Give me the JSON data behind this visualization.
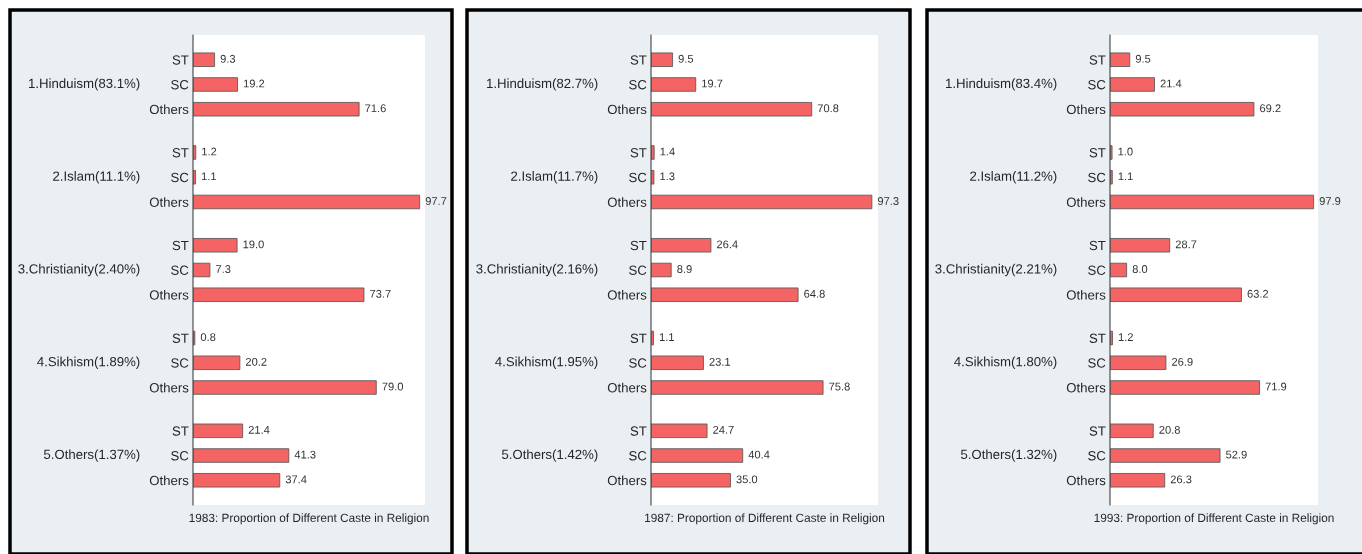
{
  "chart_data": [
    {
      "type": "bar",
      "orientation": "horizontal",
      "xlabel": "1983: Proportion of Different Caste in Religion",
      "categories": [
        "ST",
        "SC",
        "Others",
        "ST",
        "SC",
        "Others",
        "ST",
        "SC",
        "Others",
        "ST",
        "SC",
        "Others",
        "ST",
        "SC",
        "Others"
      ],
      "annotations": [
        "1.Hinduism(83.1%)",
        "2.Islam(11.1%)",
        "3.Christianity(2.40%)",
        "4.Sikhism(1.89%)",
        "5.Others(1.37%)"
      ],
      "values": [
        9.3,
        19.2,
        71.6,
        1.2,
        1.1,
        97.7,
        19.0,
        7.3,
        73.7,
        0.8,
        20.2,
        79.0,
        21.4,
        41.3,
        37.4
      ],
      "value_labels": [
        "9.3",
        "19.2",
        "71.6",
        "1.2",
        "1.1",
        "97.7",
        "19.0",
        "7.3",
        "73.7",
        "0.8",
        "20.2",
        "79.0",
        "21.4",
        "41.3",
        "37.4"
      ],
      "color": "#f46464",
      "xlim": [
        0,
        100
      ],
      "tick_labels": "y"
    },
    {
      "type": "bar",
      "orientation": "horizontal",
      "xlabel": "1987: Proportion of Different Caste in Religion",
      "categories": [
        "ST",
        "SC",
        "Others",
        "ST",
        "SC",
        "Others",
        "ST",
        "SC",
        "Others",
        "ST",
        "SC",
        "Others",
        "ST",
        "SC",
        "Others"
      ],
      "annotations": [
        "1.Hinduism(82.7%)",
        "2.Islam(11.7%)",
        "3.Christianity(2.16%)",
        "4.Sikhism(1.95%)",
        "5.Others(1.42%)"
      ],
      "values": [
        9.5,
        19.7,
        70.8,
        1.4,
        1.3,
        97.3,
        26.4,
        8.9,
        64.8,
        1.1,
        23.1,
        75.8,
        24.7,
        40.4,
        35.0
      ],
      "value_labels": [
        "9.5",
        "19.7",
        "70.8",
        "1.4",
        "1.3",
        "97.3",
        "26.4",
        "8.9",
        "64.8",
        "1.1",
        "23.1",
        "75.8",
        "24.7",
        "40.4",
        "35.0"
      ],
      "color": "#f46464",
      "xlim": [
        0,
        100
      ],
      "tick_labels": "y"
    },
    {
      "type": "bar",
      "orientation": "horizontal",
      "xlabel": "1993: Proportion of Different Caste in Religion",
      "categories": [
        "ST",
        "SC",
        "Others",
        "ST",
        "SC",
        "Others",
        "ST",
        "SC",
        "Others",
        "ST",
        "SC",
        "Others",
        "ST",
        "SC",
        "Others"
      ],
      "annotations": [
        "1.Hinduism(83.4%)",
        "2.Islam(11.2%)",
        "3.Christianity(2.21%)",
        "4.Sikhism(1.80%)",
        "5.Others(1.32%)"
      ],
      "values": [
        9.5,
        21.4,
        69.2,
        1.0,
        1.1,
        97.9,
        28.7,
        8.0,
        63.2,
        1.2,
        26.9,
        71.9,
        20.8,
        52.9,
        26.3
      ],
      "value_labels": [
        "9.5",
        "21.4",
        "69.2",
        "1.0",
        "1.1",
        "97.9",
        "28.7",
        "8.0",
        "63.2",
        "1.2",
        "26.9",
        "71.9",
        "20.8",
        "52.9",
        "26.3"
      ],
      "color": "#f46464",
      "xlim": [
        0,
        100
      ],
      "tick_labels": "y"
    }
  ]
}
